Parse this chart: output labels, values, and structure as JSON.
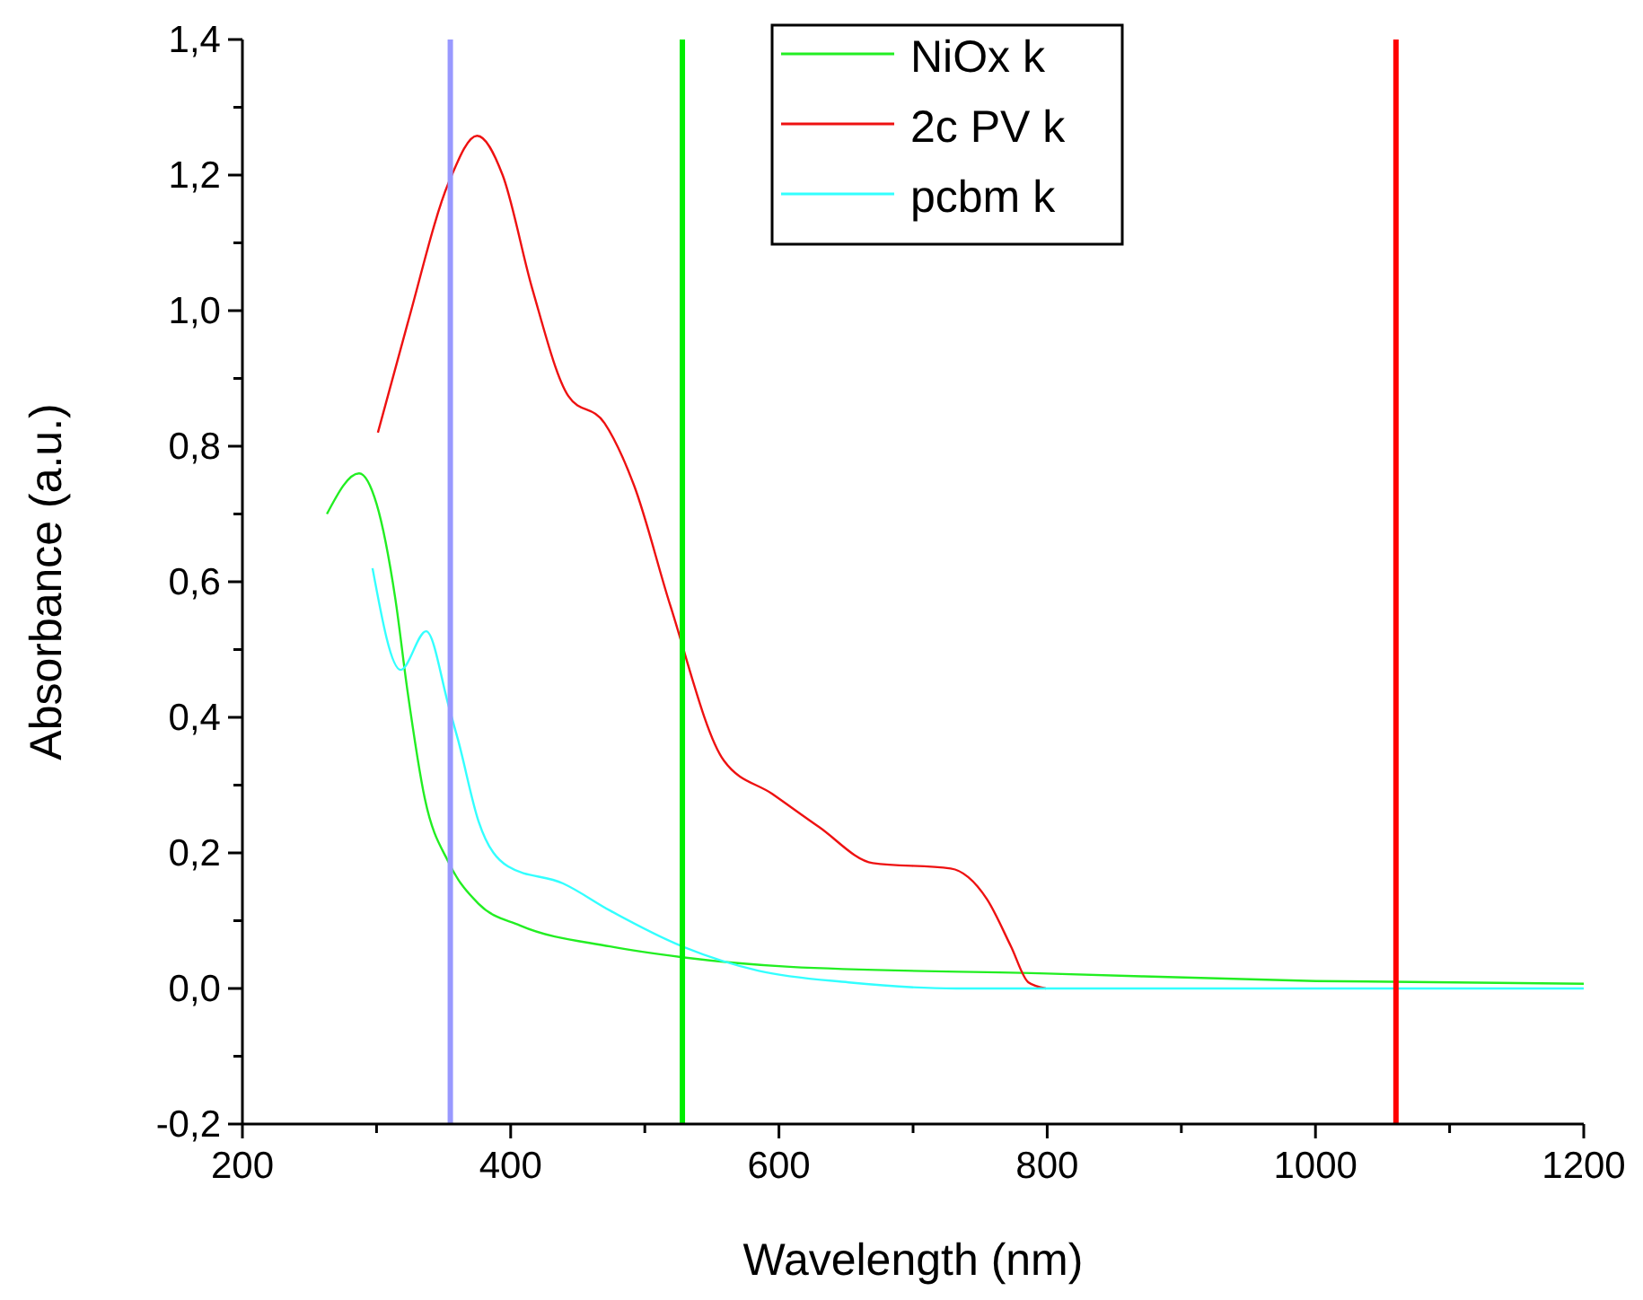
{
  "chart_data": {
    "type": "line",
    "xlabel": "Wavelength (nm)",
    "ylabel": "Absorbance (a.u.)",
    "xlim": [
      200,
      1200
    ],
    "ylim": [
      -0.2,
      1.4
    ],
    "xticks": [
      200,
      {
        "value": 300,
        "label": null
      },
      400,
      {
        "value": 500,
        "label": null
      },
      600,
      {
        "value": 700,
        "label": null
      },
      800,
      {
        "value": 900,
        "label": null
      },
      {
        "value": 1000,
        "label": "1000"
      },
      {
        "value": 1100,
        "label": null
      },
      {
        "value": 1200,
        "label": "1200"
      }
    ],
    "yticks": [
      {
        "value": -0.2,
        "label": "-0,2"
      },
      {
        "value": -0.1,
        "label": null
      },
      {
        "value": 0,
        "label": "0,0"
      },
      {
        "value": 0.1,
        "label": null
      },
      {
        "value": 0.2,
        "label": "0,2"
      },
      {
        "value": 0.3,
        "label": null
      },
      {
        "value": 0.4,
        "label": "0,4"
      },
      {
        "value": 0.5,
        "label": null
      },
      {
        "value": 0.6,
        "label": "0,6"
      },
      {
        "value": 0.7,
        "label": null
      },
      {
        "value": 0.8,
        "label": "0,8"
      },
      {
        "value": 0.9,
        "label": null
      },
      {
        "value": 1.0,
        "label": "1,0"
      },
      {
        "value": 1.1,
        "label": null
      },
      {
        "value": 1.2,
        "label": "1,2"
      },
      {
        "value": 1.3,
        "label": null
      },
      {
        "value": 1.4,
        "label": "1,4"
      }
    ],
    "grid": false,
    "legend": "top",
    "line_style": "solid",
    "marker": "none",
    "series": [
      {
        "name": "NiOx k",
        "color": "#22ee22",
        "x": [
          263,
          287,
          300,
          314,
          323,
          336,
          354,
          376,
          407,
          474,
          528,
          608,
          800,
          1000,
          1200
        ],
        "values": [
          0.7,
          0.76,
          0.715,
          0.575,
          0.44,
          0.28,
          0.185,
          0.125,
          0.093,
          0.062,
          0.046,
          0.032,
          0.022,
          0.011,
          0.007
        ]
      },
      {
        "name": "2c PV k",
        "color": "#ee1111",
        "x": [
          301,
          323,
          354,
          375,
          394,
          416,
          443,
          470,
          492,
          519,
          559,
          595,
          630,
          670,
          728,
          755,
          773,
          786,
          799
        ],
        "values": [
          0.82,
          0.98,
          1.19,
          1.258,
          1.2,
          1.033,
          0.874,
          0.834,
          0.742,
          0.565,
          0.336,
          0.287,
          0.238,
          0.185,
          0.177,
          0.132,
          0.062,
          0.009,
          0
        ]
      },
      {
        "name": "pcbm k",
        "color": "#33ffff",
        "x": [
          297,
          318,
          337,
          354,
          361,
          376,
          398,
          439,
          474,
          528,
          585,
          652,
          732,
          1200
        ],
        "values": [
          0.62,
          0.47,
          0.527,
          0.415,
          0.365,
          0.247,
          0.18,
          0.155,
          0.115,
          0.062,
          0.026,
          0.009,
          0,
          0
        ]
      }
    ],
    "ref_lines": [
      {
        "axis": "x",
        "value": 355,
        "color": "#9999ff"
      },
      {
        "axis": "x",
        "value": 528,
        "color": "#00ee00"
      },
      {
        "axis": "x",
        "value": 1060,
        "color": "#ff0000"
      }
    ]
  }
}
